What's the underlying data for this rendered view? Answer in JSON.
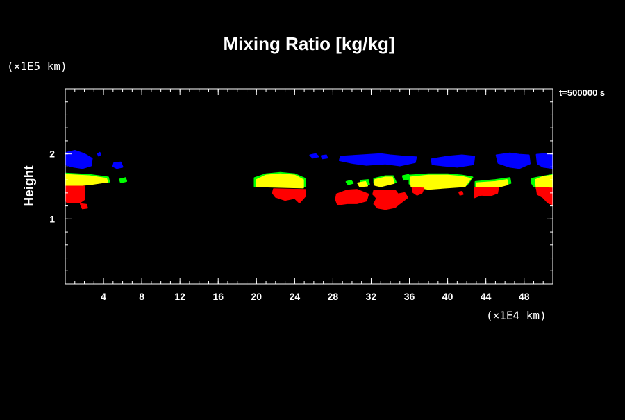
{
  "chart_data": {
    "type": "area",
    "title": "Mixing Ratio [kg/kg]",
    "ylabel": "Height",
    "xlabel": "",
    "x_unit_label": "(×1E4 km)",
    "y_unit_label": "(×1E5 km)",
    "time_label": "t=500000 s",
    "xlim": [
      0,
      51
    ],
    "ylim": [
      0,
      3
    ],
    "x_ticks": [
      4,
      8,
      12,
      16,
      20,
      24,
      28,
      32,
      36,
      40,
      44,
      48
    ],
    "x_tick_labels": [
      "4",
      "8",
      "12",
      "16",
      "20",
      "24",
      "28",
      "32",
      "36",
      "40",
      "44",
      "48"
    ],
    "y_ticks": [
      1,
      2
    ],
    "y_tick_labels": [
      "1",
      "2"
    ],
    "x_minor_step": 1,
    "y_minor_step": 0.2,
    "grid": false,
    "background": "#000000",
    "regions": [
      {
        "color": "#0000ff",
        "polygons": [
          [
            [
              0.1,
              2.02
            ],
            [
              1.0,
              2.05
            ],
            [
              2.0,
              2.0
            ],
            [
              2.8,
              1.93
            ],
            [
              2.7,
              1.82
            ],
            [
              1.8,
              1.78
            ],
            [
              0.9,
              1.8
            ],
            [
              0.1,
              1.83
            ]
          ],
          [
            [
              3.4,
              2.0
            ],
            [
              3.6,
              2.02
            ],
            [
              3.7,
              1.99
            ],
            [
              3.5,
              1.97
            ]
          ],
          [
            [
              5.1,
              1.86
            ],
            [
              5.8,
              1.87
            ],
            [
              6.0,
              1.8
            ],
            [
              5.4,
              1.78
            ],
            [
              5.0,
              1.81
            ]
          ],
          [
            [
              25.6,
              1.98
            ],
            [
              26.2,
              2.0
            ],
            [
              26.5,
              1.96
            ],
            [
              25.9,
              1.94
            ]
          ],
          [
            [
              26.8,
              1.97
            ],
            [
              27.3,
              1.98
            ],
            [
              27.4,
              1.94
            ],
            [
              26.9,
              1.93
            ]
          ],
          [
            [
              28.8,
              1.96
            ],
            [
              31.0,
              1.98
            ],
            [
              33.0,
              2.0
            ],
            [
              34.0,
              1.98
            ],
            [
              35.5,
              1.96
            ],
            [
              36.7,
              1.95
            ],
            [
              36.6,
              1.87
            ],
            [
              35.0,
              1.82
            ],
            [
              33.5,
              1.85
            ],
            [
              31.5,
              1.83
            ],
            [
              30.0,
              1.86
            ],
            [
              28.7,
              1.9
            ]
          ],
          [
            [
              38.3,
              1.92
            ],
            [
              40.0,
              1.96
            ],
            [
              41.5,
              1.98
            ],
            [
              42.8,
              1.96
            ],
            [
              42.7,
              1.84
            ],
            [
              41.0,
              1.8
            ],
            [
              39.5,
              1.82
            ],
            [
              38.4,
              1.84
            ]
          ],
          [
            [
              45.1,
              1.98
            ],
            [
              46.5,
              2.01
            ],
            [
              47.5,
              1.99
            ],
            [
              48.5,
              1.98
            ],
            [
              48.6,
              1.85
            ],
            [
              47.5,
              1.78
            ],
            [
              46.5,
              1.8
            ],
            [
              45.3,
              1.86
            ]
          ],
          [
            [
              49.3,
              1.99
            ],
            [
              51.0,
              2.01
            ],
            [
              51.0,
              1.78
            ],
            [
              50.0,
              1.8
            ],
            [
              49.4,
              1.85
            ]
          ]
        ]
      },
      {
        "color": "#00ff00",
        "polygons": [
          [
            [
              0.0,
              1.7
            ],
            [
              2.5,
              1.68
            ],
            [
              4.5,
              1.64
            ],
            [
              4.6,
              1.57
            ],
            [
              2.5,
              1.54
            ],
            [
              0.0,
              1.54
            ]
          ],
          [
            [
              5.7,
              1.61
            ],
            [
              6.3,
              1.63
            ],
            [
              6.4,
              1.58
            ],
            [
              5.8,
              1.56
            ]
          ],
          [
            [
              19.8,
              1.63
            ],
            [
              21.0,
              1.69
            ],
            [
              22.5,
              1.71
            ],
            [
              24.0,
              1.69
            ],
            [
              25.1,
              1.62
            ],
            [
              25.1,
              1.5
            ],
            [
              19.8,
              1.5
            ]
          ],
          [
            [
              29.4,
              1.57
            ],
            [
              29.9,
              1.59
            ],
            [
              30.1,
              1.55
            ],
            [
              29.6,
              1.53
            ]
          ],
          [
            [
              30.9,
              1.59
            ],
            [
              31.7,
              1.6
            ],
            [
              31.8,
              1.53
            ],
            [
              31.0,
              1.52
            ]
          ],
          [
            [
              32.3,
              1.62
            ],
            [
              33.5,
              1.66
            ],
            [
              34.3,
              1.66
            ],
            [
              34.6,
              1.56
            ],
            [
              33.0,
              1.52
            ],
            [
              32.3,
              1.55
            ]
          ],
          [
            [
              35.3,
              1.66
            ],
            [
              35.9,
              1.68
            ],
            [
              36.1,
              1.62
            ],
            [
              35.4,
              1.6
            ]
          ],
          [
            [
              36.0,
              1.67
            ],
            [
              38.0,
              1.69
            ],
            [
              40.0,
              1.69
            ],
            [
              41.5,
              1.67
            ],
            [
              42.6,
              1.64
            ],
            [
              42.0,
              1.52
            ],
            [
              38.0,
              1.5
            ],
            [
              36.0,
              1.54
            ]
          ],
          [
            [
              42.9,
              1.57
            ],
            [
              45.0,
              1.6
            ],
            [
              46.5,
              1.63
            ],
            [
              46.6,
              1.55
            ],
            [
              45.0,
              1.5
            ],
            [
              42.9,
              1.5
            ]
          ],
          [
            [
              48.8,
              1.62
            ],
            [
              49.5,
              1.64
            ],
            [
              51.0,
              1.68
            ],
            [
              51.0,
              1.48
            ],
            [
              49.0,
              1.5
            ],
            [
              48.8,
              1.55
            ]
          ]
        ]
      },
      {
        "color": "#ffff00",
        "polygons": [
          [
            [
              0.0,
              1.68
            ],
            [
              2.5,
              1.66
            ],
            [
              4.3,
              1.62
            ],
            [
              4.4,
              1.57
            ],
            [
              2.5,
              1.53
            ],
            [
              0.0,
              1.5
            ]
          ],
          [
            [
              20.0,
              1.6
            ],
            [
              21.0,
              1.67
            ],
            [
              22.5,
              1.69
            ],
            [
              24.0,
              1.67
            ],
            [
              24.9,
              1.6
            ],
            [
              24.9,
              1.48
            ],
            [
              20.0,
              1.5
            ]
          ],
          [
            [
              30.6,
              1.55
            ],
            [
              31.4,
              1.57
            ],
            [
              31.6,
              1.51
            ],
            [
              30.8,
              1.5
            ]
          ],
          [
            [
              32.4,
              1.6
            ],
            [
              33.5,
              1.64
            ],
            [
              34.2,
              1.64
            ],
            [
              34.4,
              1.55
            ],
            [
              33.0,
              1.5
            ],
            [
              32.4,
              1.52
            ]
          ],
          [
            [
              36.1,
              1.64
            ],
            [
              38.0,
              1.67
            ],
            [
              40.0,
              1.67
            ],
            [
              41.5,
              1.65
            ],
            [
              42.4,
              1.62
            ],
            [
              41.8,
              1.5
            ],
            [
              38.0,
              1.46
            ],
            [
              36.2,
              1.5
            ]
          ],
          [
            [
              43.0,
              1.55
            ],
            [
              45.0,
              1.57
            ],
            [
              46.2,
              1.6
            ],
            [
              46.3,
              1.53
            ],
            [
              45.0,
              1.48
            ],
            [
              43.1,
              1.47
            ]
          ],
          [
            [
              49.2,
              1.6
            ],
            [
              50.0,
              1.65
            ],
            [
              51.0,
              1.67
            ],
            [
              51.0,
              1.47
            ],
            [
              49.3,
              1.47
            ]
          ]
        ]
      },
      {
        "color": "#ff0000",
        "polygons": [
          [
            [
              0.0,
              1.5
            ],
            [
              2.0,
              1.5
            ],
            [
              2.0,
              1.3
            ],
            [
              1.5,
              1.25
            ],
            [
              0.2,
              1.25
            ],
            [
              0.0,
              1.3
            ]
          ],
          [
            [
              1.6,
              1.23
            ],
            [
              2.2,
              1.22
            ],
            [
              2.3,
              1.17
            ],
            [
              1.8,
              1.16
            ]
          ],
          [
            [
              21.8,
              1.46
            ],
            [
              25.1,
              1.45
            ],
            [
              25.1,
              1.35
            ],
            [
              24.5,
              1.25
            ],
            [
              24.0,
              1.32
            ],
            [
              23.0,
              1.29
            ],
            [
              22.0,
              1.34
            ],
            [
              21.7,
              1.4
            ]
          ],
          [
            [
              28.4,
              1.38
            ],
            [
              29.5,
              1.44
            ],
            [
              30.5,
              1.45
            ],
            [
              31.7,
              1.38
            ],
            [
              31.5,
              1.28
            ],
            [
              30.5,
              1.24
            ],
            [
              29.5,
              1.24
            ],
            [
              28.5,
              1.22
            ],
            [
              28.3,
              1.3
            ]
          ],
          [
            [
              32.3,
              1.44
            ],
            [
              34.5,
              1.44
            ],
            [
              34.8,
              1.38
            ],
            [
              35.5,
              1.4
            ],
            [
              35.8,
              1.33
            ],
            [
              35.0,
              1.24
            ],
            [
              34.5,
              1.18
            ],
            [
              33.5,
              1.15
            ],
            [
              32.7,
              1.17
            ],
            [
              32.3,
              1.23
            ],
            [
              32.6,
              1.32
            ],
            [
              32.2,
              1.38
            ]
          ],
          [
            [
              36.3,
              1.48
            ],
            [
              37.5,
              1.47
            ],
            [
              37.3,
              1.4
            ],
            [
              36.8,
              1.37
            ],
            [
              36.4,
              1.41
            ]
          ],
          [
            [
              41.2,
              1.41
            ],
            [
              41.5,
              1.42
            ],
            [
              41.6,
              1.38
            ],
            [
              41.3,
              1.37
            ]
          ],
          [
            [
              42.8,
              1.48
            ],
            [
              45.3,
              1.48
            ],
            [
              45.2,
              1.4
            ],
            [
              44.5,
              1.36
            ],
            [
              43.5,
              1.37
            ],
            [
              42.8,
              1.33
            ],
            [
              42.8,
              1.4
            ]
          ],
          [
            [
              49.3,
              1.48
            ],
            [
              51.0,
              1.47
            ],
            [
              51.0,
              1.22
            ],
            [
              50.5,
              1.25
            ],
            [
              50.0,
              1.33
            ],
            [
              49.4,
              1.38
            ]
          ]
        ]
      }
    ]
  }
}
